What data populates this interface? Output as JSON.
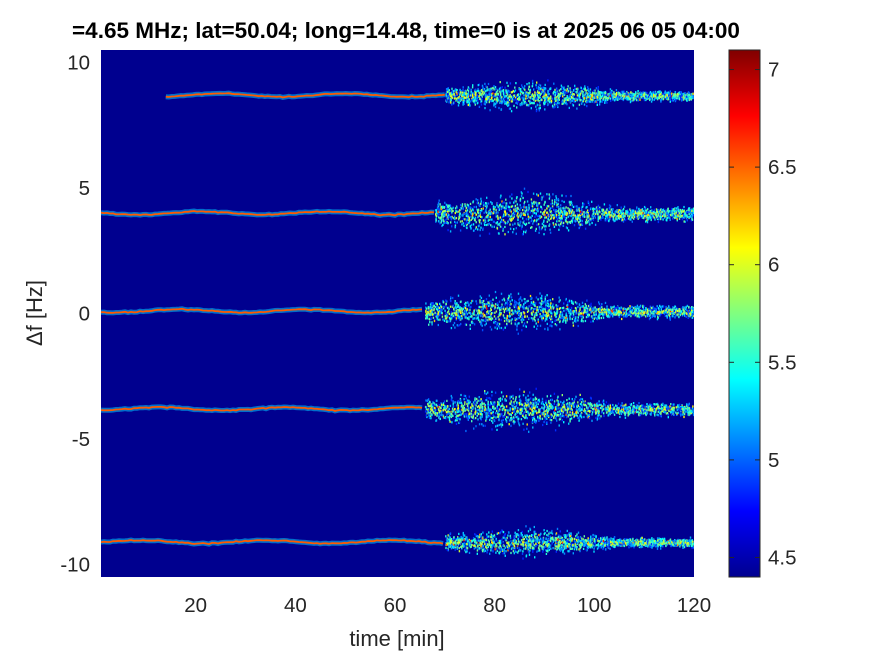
{
  "chart_data": {
    "type": "heatmap",
    "title": "=4.65 MHz;  lat=50.04; long=14.48, time=0 is at 2025 06 05 04:00",
    "xlabel": "time [min]",
    "ylabel": "Δf [Hz]",
    "xlim": [
      1,
      120
    ],
    "ylim": [
      -10.5,
      10.5
    ],
    "x_ticks": [
      20,
      40,
      60,
      80,
      100,
      120
    ],
    "x_tick_labels": [
      "20",
      "40",
      "60",
      "80",
      "100",
      "120"
    ],
    "y_ticks": [
      10,
      5,
      0,
      -5,
      -10
    ],
    "y_tick_labels": [
      "10",
      "5",
      "0",
      "-5",
      "-10"
    ],
    "colorbar": {
      "range": [
        4.4,
        7.1
      ],
      "ticks": [
        7,
        6.5,
        6,
        5.5,
        5,
        4.5
      ],
      "tick_labels": [
        "7",
        "6.5",
        "6",
        "5.5",
        "5",
        "4.5"
      ],
      "colormap": "jet"
    },
    "background_color": "#00008f",
    "traces": [
      {
        "center_hz": 8.7,
        "start_min": 14,
        "end_min": 70,
        "spread_start_min": 70,
        "spread_end_min": 120,
        "spread_width_hz": 1.5
      },
      {
        "center_hz": 4.0,
        "start_min": 1,
        "end_min": 68,
        "spread_start_min": 68,
        "spread_end_min": 120,
        "spread_width_hz": 2.2
      },
      {
        "center_hz": 0.1,
        "start_min": 1,
        "end_min": 66,
        "spread_start_min": 66,
        "spread_end_min": 120,
        "spread_width_hz": 2.0
      },
      {
        "center_hz": -3.8,
        "start_min": 1,
        "end_min": 66,
        "spread_start_min": 66,
        "spread_end_min": 120,
        "spread_width_hz": 2.0
      },
      {
        "center_hz": -9.1,
        "start_min": 1,
        "end_min": 70,
        "spread_start_min": 70,
        "spread_end_min": 120,
        "spread_width_hz": 1.4
      }
    ]
  }
}
